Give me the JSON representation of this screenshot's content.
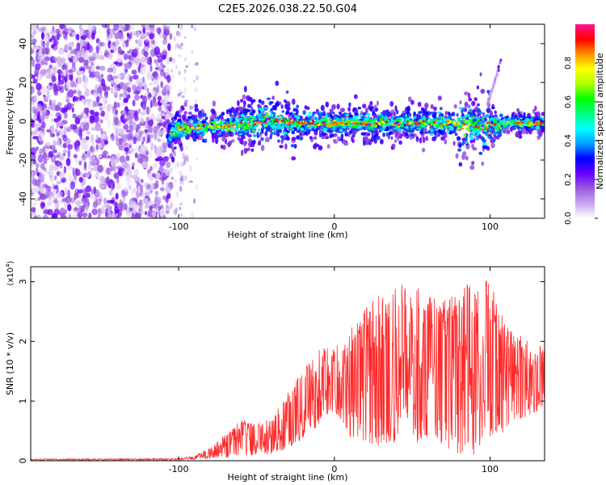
{
  "title": "C2E5.2026.038.22.50.G04",
  "chart_data": [
    {
      "type": "heatmap",
      "name": "spectrogram",
      "xlabel": "Height of straight line (km)",
      "ylabel": "Frequency (Hz)",
      "xlim": [
        -195,
        135
      ],
      "ylim": [
        -50,
        50
      ],
      "x_ticks": [
        -100,
        0,
        100
      ],
      "x_tick_labels": [
        "-100",
        "0",
        "100"
      ],
      "y_ticks": [
        -40,
        -20,
        0,
        20,
        40
      ],
      "y_tick_labels": [
        "-40",
        "-20",
        "0",
        "20",
        "40"
      ],
      "noise_region_x": [
        -195,
        -105
      ],
      "sparse_region_x": [
        -105,
        -88
      ],
      "signal_start_x": -107,
      "centerline_hz": [
        {
          "x": -107,
          "y": -8
        },
        {
          "x": -100,
          "y": -4
        },
        {
          "x": -85,
          "y": -3
        },
        {
          "x": -60,
          "y": -2
        },
        {
          "x": -40,
          "y": 1
        },
        {
          "x": -25,
          "y": -1
        },
        {
          "x": 0,
          "y": -1
        },
        {
          "x": 40,
          "y": -1
        },
        {
          "x": 80,
          "y": -1
        },
        {
          "x": 95,
          "y": -3
        },
        {
          "x": 110,
          "y": -1
        },
        {
          "x": 135,
          "y": -1
        }
      ],
      "streak": {
        "x": [
          98,
          107
        ],
        "y": [
          8,
          31
        ]
      },
      "colorbar": {
        "label": "Normalized spectral amplitude",
        "range": [
          0,
          1
        ],
        "ticks": [
          0.0,
          0.2,
          0.4,
          0.6,
          0.8
        ],
        "tick_labels": [
          "0.0",
          "0.2",
          "0.4",
          "0.6",
          "0.8"
        ],
        "colors": [
          "#ffffff",
          "#c7a6ee",
          "#9a5ae0",
          "#6a00ff",
          "#0000ff",
          "#00a0ff",
          "#00ffff",
          "#00ff80",
          "#00ff00",
          "#b0ff00",
          "#ffff00",
          "#ff9000",
          "#ff0000",
          "#ff1493"
        ]
      }
    },
    {
      "type": "line",
      "name": "snr",
      "xlabel": "Height of straight line (km)",
      "ylabel": "SNR (10 * v/v)",
      "multiplier_label": "(x10",
      "multiplier_exp": "4",
      "multiplier_close": ")",
      "xlim": [
        -195,
        135
      ],
      "ylim": [
        0,
        3.25
      ],
      "x_ticks": [
        -100,
        0,
        100
      ],
      "x_tick_labels": [
        "-100",
        "0",
        "100"
      ],
      "y_ticks": [
        0,
        1,
        2,
        3
      ],
      "y_tick_labels": [
        "0",
        "1",
        "2",
        "3"
      ],
      "color": "#ff2a2a",
      "envelope": [
        {
          "x": -195,
          "lo": 0.01,
          "hi": 0.03
        },
        {
          "x": -100,
          "lo": 0.01,
          "hi": 0.04
        },
        {
          "x": -90,
          "lo": 0.02,
          "hi": 0.08
        },
        {
          "x": -80,
          "lo": 0.04,
          "hi": 0.22
        },
        {
          "x": -70,
          "lo": 0.05,
          "hi": 0.45
        },
        {
          "x": -60,
          "lo": 0.06,
          "hi": 0.7
        },
        {
          "x": -50,
          "lo": 0.08,
          "hi": 0.6
        },
        {
          "x": -40,
          "lo": 0.1,
          "hi": 0.75
        },
        {
          "x": -30,
          "lo": 0.2,
          "hi": 1.2
        },
        {
          "x": -20,
          "lo": 0.35,
          "hi": 1.5
        },
        {
          "x": -10,
          "lo": 0.6,
          "hi": 2.0
        },
        {
          "x": 0,
          "lo": 0.8,
          "hi": 1.9
        },
        {
          "x": 10,
          "lo": 0.4,
          "hi": 2.2
        },
        {
          "x": 20,
          "lo": 0.3,
          "hi": 2.6
        },
        {
          "x": 30,
          "lo": 0.25,
          "hi": 2.8
        },
        {
          "x": 40,
          "lo": 0.3,
          "hi": 3.0
        },
        {
          "x": 50,
          "lo": 0.3,
          "hi": 2.9
        },
        {
          "x": 60,
          "lo": 0.3,
          "hi": 2.9
        },
        {
          "x": 70,
          "lo": 0.25,
          "hi": 2.7
        },
        {
          "x": 80,
          "lo": 0.1,
          "hi": 2.8
        },
        {
          "x": 90,
          "lo": 0.1,
          "hi": 3.1
        },
        {
          "x": 100,
          "lo": 0.3,
          "hi": 3.0
        },
        {
          "x": 110,
          "lo": 0.5,
          "hi": 2.3
        },
        {
          "x": 120,
          "lo": 0.7,
          "hi": 2.1
        },
        {
          "x": 135,
          "lo": 0.9,
          "hi": 1.9
        }
      ]
    }
  ]
}
